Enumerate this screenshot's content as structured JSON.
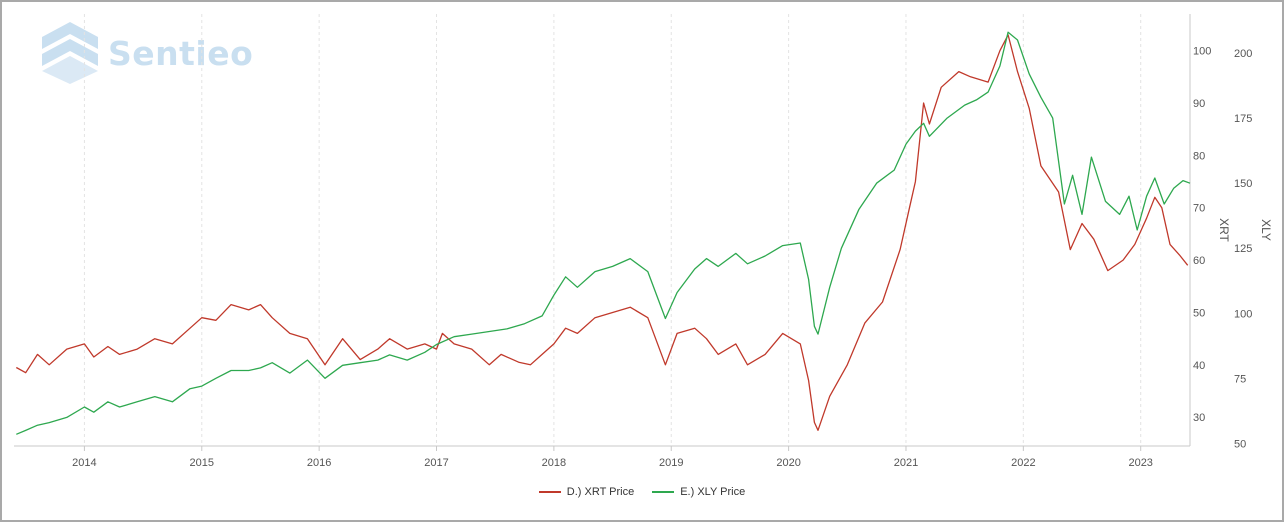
{
  "logo": {
    "text": "Sentieo",
    "icon": "sentieo-chevron-logo-icon",
    "color": "#c9dff0"
  },
  "chart_data": {
    "type": "line",
    "title": "",
    "xlabel": "",
    "x_ticks": [
      "2014",
      "2015",
      "2016",
      "2017",
      "2018",
      "2019",
      "2020",
      "2021",
      "2022",
      "2023"
    ],
    "xlim": [
      2013.4,
      2023.42
    ],
    "grid": "vertical dashed",
    "legend_position": "bottom-center",
    "axes": [
      {
        "id": "left",
        "title": "XRT",
        "side": "right-inner",
        "ticks": [
          30,
          40,
          50,
          60,
          70,
          80,
          90,
          100
        ],
        "ylim": [
          24.5,
          107
        ]
      },
      {
        "id": "right",
        "title": "XLY",
        "side": "right-outer",
        "ticks": [
          50,
          75,
          100,
          125,
          150,
          175,
          200
        ],
        "ylim": [
          49,
          215
        ]
      }
    ],
    "series": [
      {
        "name": "D.) XRT Price",
        "axis": "left",
        "color": "#c0392b",
        "points": [
          [
            2013.42,
            39.5
          ],
          [
            2013.5,
            38.5
          ],
          [
            2013.6,
            42
          ],
          [
            2013.7,
            40
          ],
          [
            2013.85,
            43
          ],
          [
            2014.0,
            44
          ],
          [
            2014.08,
            41.5
          ],
          [
            2014.2,
            43.5
          ],
          [
            2014.3,
            42
          ],
          [
            2014.45,
            43
          ],
          [
            2014.6,
            45
          ],
          [
            2014.75,
            44
          ],
          [
            2014.9,
            47
          ],
          [
            2015.0,
            49
          ],
          [
            2015.12,
            48.5
          ],
          [
            2015.25,
            51.5
          ],
          [
            2015.4,
            50.5
          ],
          [
            2015.5,
            51.5
          ],
          [
            2015.6,
            49
          ],
          [
            2015.75,
            46
          ],
          [
            2015.9,
            45
          ],
          [
            2016.05,
            40
          ],
          [
            2016.2,
            45
          ],
          [
            2016.35,
            41
          ],
          [
            2016.5,
            43
          ],
          [
            2016.6,
            45
          ],
          [
            2016.75,
            43
          ],
          [
            2016.9,
            44
          ],
          [
            2017.0,
            43
          ],
          [
            2017.05,
            46
          ],
          [
            2017.15,
            44
          ],
          [
            2017.3,
            43
          ],
          [
            2017.45,
            40
          ],
          [
            2017.55,
            42
          ],
          [
            2017.7,
            40.5
          ],
          [
            2017.8,
            40
          ],
          [
            2017.9,
            42
          ],
          [
            2018.0,
            44
          ],
          [
            2018.1,
            47
          ],
          [
            2018.2,
            46
          ],
          [
            2018.35,
            49
          ],
          [
            2018.5,
            50
          ],
          [
            2018.65,
            51
          ],
          [
            2018.8,
            49
          ],
          [
            2018.95,
            40
          ],
          [
            2019.05,
            46
          ],
          [
            2019.2,
            47
          ],
          [
            2019.3,
            45
          ],
          [
            2019.4,
            42
          ],
          [
            2019.55,
            44
          ],
          [
            2019.65,
            40
          ],
          [
            2019.8,
            42
          ],
          [
            2019.95,
            46
          ],
          [
            2020.1,
            44
          ],
          [
            2020.17,
            37
          ],
          [
            2020.22,
            29
          ],
          [
            2020.25,
            27.5
          ],
          [
            2020.35,
            34
          ],
          [
            2020.5,
            40
          ],
          [
            2020.65,
            48
          ],
          [
            2020.8,
            52
          ],
          [
            2020.95,
            62
          ],
          [
            2021.03,
            70
          ],
          [
            2021.08,
            75
          ],
          [
            2021.15,
            90
          ],
          [
            2021.2,
            86
          ],
          [
            2021.3,
            93
          ],
          [
            2021.45,
            96
          ],
          [
            2021.55,
            95
          ],
          [
            2021.7,
            94
          ],
          [
            2021.8,
            100
          ],
          [
            2021.87,
            103
          ],
          [
            2021.95,
            96
          ],
          [
            2022.05,
            89
          ],
          [
            2022.15,
            78
          ],
          [
            2022.3,
            73
          ],
          [
            2022.4,
            62
          ],
          [
            2022.5,
            67
          ],
          [
            2022.6,
            64
          ],
          [
            2022.72,
            58
          ],
          [
            2022.85,
            60
          ],
          [
            2022.95,
            63
          ],
          [
            2023.05,
            68
          ],
          [
            2023.12,
            72
          ],
          [
            2023.18,
            70
          ],
          [
            2023.25,
            63
          ],
          [
            2023.33,
            61
          ],
          [
            2023.4,
            59
          ]
        ]
      },
      {
        "name": "E.) XLY Price",
        "axis": "right",
        "color": "#2ea84f",
        "points": [
          [
            2013.42,
            53.5
          ],
          [
            2013.5,
            55
          ],
          [
            2013.6,
            57
          ],
          [
            2013.7,
            58
          ],
          [
            2013.85,
            60
          ],
          [
            2014.0,
            64
          ],
          [
            2014.08,
            62
          ],
          [
            2014.2,
            66
          ],
          [
            2014.3,
            64
          ],
          [
            2014.45,
            66
          ],
          [
            2014.6,
            68
          ],
          [
            2014.75,
            66
          ],
          [
            2014.9,
            71
          ],
          [
            2015.0,
            72
          ],
          [
            2015.12,
            75
          ],
          [
            2015.25,
            78
          ],
          [
            2015.4,
            78
          ],
          [
            2015.5,
            79
          ],
          [
            2015.6,
            81
          ],
          [
            2015.75,
            77
          ],
          [
            2015.9,
            82
          ],
          [
            2016.05,
            75
          ],
          [
            2016.2,
            80
          ],
          [
            2016.35,
            81
          ],
          [
            2016.5,
            82
          ],
          [
            2016.6,
            84
          ],
          [
            2016.75,
            82
          ],
          [
            2016.9,
            85
          ],
          [
            2017.0,
            88
          ],
          [
            2017.15,
            91
          ],
          [
            2017.3,
            92
          ],
          [
            2017.45,
            93
          ],
          [
            2017.6,
            94
          ],
          [
            2017.75,
            96
          ],
          [
            2017.9,
            99
          ],
          [
            2018.0,
            107
          ],
          [
            2018.1,
            114
          ],
          [
            2018.2,
            110
          ],
          [
            2018.35,
            116
          ],
          [
            2018.5,
            118
          ],
          [
            2018.65,
            121
          ],
          [
            2018.8,
            116
          ],
          [
            2018.95,
            98
          ],
          [
            2019.05,
            108
          ],
          [
            2019.2,
            117
          ],
          [
            2019.3,
            121
          ],
          [
            2019.4,
            118
          ],
          [
            2019.55,
            123
          ],
          [
            2019.65,
            119
          ],
          [
            2019.8,
            122
          ],
          [
            2019.95,
            126
          ],
          [
            2020.1,
            127
          ],
          [
            2020.17,
            113
          ],
          [
            2020.22,
            95
          ],
          [
            2020.25,
            92
          ],
          [
            2020.35,
            110
          ],
          [
            2020.45,
            125
          ],
          [
            2020.6,
            140
          ],
          [
            2020.75,
            150
          ],
          [
            2020.9,
            155
          ],
          [
            2021.0,
            165
          ],
          [
            2021.08,
            170
          ],
          [
            2021.15,
            173
          ],
          [
            2021.2,
            168
          ],
          [
            2021.35,
            175
          ],
          [
            2021.5,
            180
          ],
          [
            2021.6,
            182
          ],
          [
            2021.7,
            185
          ],
          [
            2021.8,
            195
          ],
          [
            2021.87,
            208
          ],
          [
            2021.95,
            205
          ],
          [
            2022.05,
            192
          ],
          [
            2022.15,
            183
          ],
          [
            2022.25,
            175
          ],
          [
            2022.35,
            142
          ],
          [
            2022.42,
            153
          ],
          [
            2022.5,
            138
          ],
          [
            2022.58,
            160
          ],
          [
            2022.7,
            143
          ],
          [
            2022.82,
            138
          ],
          [
            2022.9,
            145
          ],
          [
            2022.97,
            132
          ],
          [
            2023.05,
            145
          ],
          [
            2023.12,
            152
          ],
          [
            2023.2,
            142
          ],
          [
            2023.28,
            148
          ],
          [
            2023.36,
            151
          ],
          [
            2023.42,
            150
          ]
        ]
      }
    ]
  }
}
